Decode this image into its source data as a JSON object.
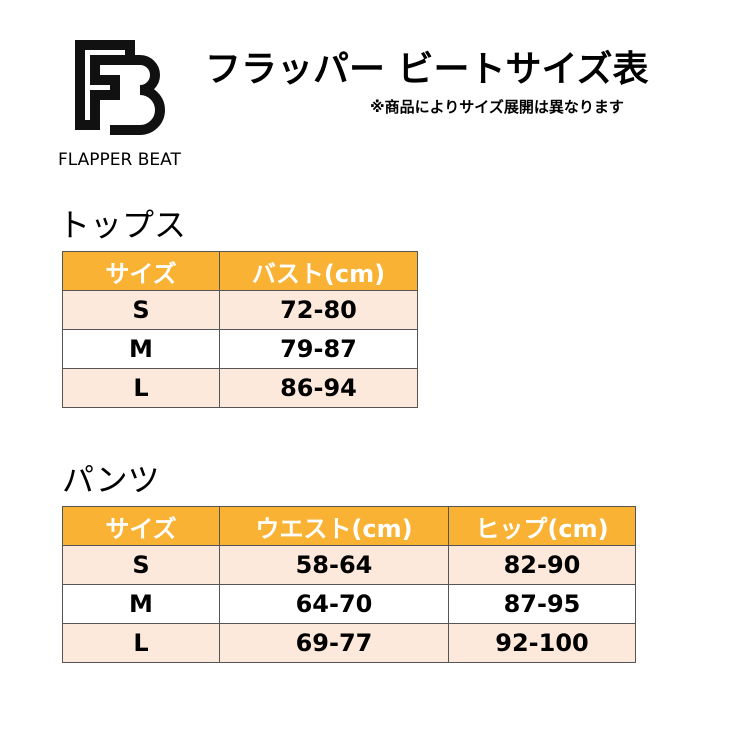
{
  "header": {
    "logo_text": "FLAPPER BEAT",
    "title": "フラッパー ビートサイズ表",
    "note": "※商品によりサイズ展開は異なります"
  },
  "tops": {
    "title": "トップス",
    "table": {
      "columns": [
        "サイズ",
        "バスト(cm)"
      ],
      "rows": [
        [
          "S",
          "72-80"
        ],
        [
          "M",
          "79-87"
        ],
        [
          "L",
          "86-94"
        ]
      ]
    }
  },
  "pants": {
    "title": "パンツ",
    "table": {
      "columns": [
        "サイズ",
        "ウエスト(cm)",
        "ヒップ(cm)"
      ],
      "rows": [
        [
          "S",
          "58-64",
          "82-90"
        ],
        [
          "M",
          "64-70",
          "87-95"
        ],
        [
          "L",
          "69-77",
          "92-100"
        ]
      ]
    }
  }
}
